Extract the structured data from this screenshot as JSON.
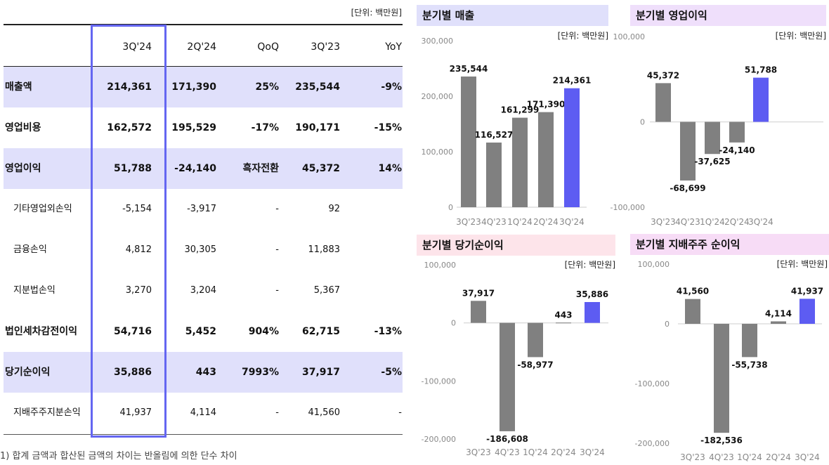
{
  "table": {
    "unit": "[단위: 백만원]",
    "headers": [
      "",
      "3Q'24",
      "2Q'24",
      "QoQ",
      "3Q'23",
      "YoY"
    ],
    "rows": [
      {
        "label": "매출액",
        "values": [
          "214,361",
          "171,390",
          "25%",
          "235,544",
          "-9%"
        ],
        "style": "highlight"
      },
      {
        "label": "영업비용",
        "values": [
          "162,572",
          "195,529",
          "-17%",
          "190,171",
          "-15%"
        ],
        "style": "bold"
      },
      {
        "label": "영업이익",
        "values": [
          "51,788",
          "-24,140",
          "흑자전환",
          "45,372",
          "14%"
        ],
        "style": "highlight"
      },
      {
        "label": "기타영업외손익",
        "values": [
          "-5,154",
          "-3,917",
          "-",
          "92",
          ""
        ],
        "style": "sub"
      },
      {
        "label": "금융손익",
        "values": [
          "4,812",
          "30,305",
          "-",
          "11,883",
          ""
        ],
        "style": "sub"
      },
      {
        "label": "지분법손익",
        "values": [
          "3,270",
          "3,204",
          "-",
          "5,367",
          ""
        ],
        "style": "sub"
      },
      {
        "label": "법인세차감전이익",
        "values": [
          "54,716",
          "5,452",
          "904%",
          "62,715",
          "-13%"
        ],
        "style": "bold"
      },
      {
        "label": "당기순이익",
        "values": [
          "35,886",
          "443",
          "7993%",
          "37,917",
          "-5%"
        ],
        "style": "highlight"
      },
      {
        "label": "지배주주지분손익",
        "values": [
          "41,937",
          "4,114",
          "-",
          "41,560",
          "-"
        ],
        "style": "sub"
      }
    ],
    "footnote": "1) 합계 금액과 합산된 금액의 차이는 반올림에 의한 단수 차이"
  },
  "colors": {
    "highlight_row": "#e0e0fb",
    "box": "#6466f1",
    "bar": "#808080",
    "bar_current": "#5d5cf2"
  },
  "chart_data": [
    {
      "type": "bar",
      "title": "분기별 매출",
      "unit": "[단위: 백만원]",
      "title_bg": "#e0e0fb",
      "categories": [
        "3Q'23",
        "4Q'23",
        "1Q'24",
        "2Q'24",
        "3Q'24"
      ],
      "values": [
        235544,
        116527,
        161299,
        171390,
        214361
      ],
      "labels": [
        "235,544",
        "116,527",
        "161,299",
        "171,390",
        "214,361"
      ],
      "yticks": [
        "300,000",
        "200,000",
        "100,000",
        "0"
      ],
      "ylim": [
        0,
        300000
      ],
      "highlight": "3Q'24"
    },
    {
      "type": "bar",
      "title": "분기별 영업이익",
      "unit": "[단위: 백만원]",
      "title_bg": "#efdffb",
      "categories": [
        "3Q'23",
        "4Q'23",
        "1Q'24",
        "2Q'24",
        "3Q'24"
      ],
      "values": [
        45372,
        -68699,
        -37625,
        -24140,
        51788
      ],
      "labels": [
        "45,372",
        "-68,699",
        "-37,625",
        "-24,140",
        "51,788"
      ],
      "yticks": [
        "100,000",
        "0",
        "-100,000"
      ],
      "ylim": [
        -100000,
        100000
      ],
      "highlight": "3Q'24"
    },
    {
      "type": "bar",
      "title": "분기별 당기순이익",
      "unit": "[단위: 백만원]",
      "title_bg": "#fde4ea",
      "categories": [
        "3Q'23",
        "4Q'23",
        "1Q'24",
        "2Q'24",
        "3Q'24"
      ],
      "values": [
        37917,
        -186608,
        -58977,
        443,
        35886
      ],
      "labels": [
        "37,917",
        "-186,608",
        "-58,977",
        "443",
        "35,886"
      ],
      "yticks": [
        "100,000",
        "0",
        "-100,000",
        "-200,000"
      ],
      "ylim": [
        -200000,
        100000
      ],
      "highlight": "3Q'24"
    },
    {
      "type": "bar",
      "title": "분기별 지배주주 순이익",
      "unit": "[단위: 백만원]",
      "title_bg": "#f7dcf6",
      "categories": [
        "3Q'23",
        "4Q'23",
        "1Q'24",
        "2Q'24",
        "3Q'24"
      ],
      "values": [
        41560,
        -182536,
        -55738,
        4114,
        41937
      ],
      "labels": [
        "41,560",
        "-182,536",
        "-55,738",
        "4,114",
        "41,937"
      ],
      "yticks": [
        "100,000",
        "0",
        "-100,000",
        "-200,000"
      ],
      "ylim": [
        -200000,
        100000
      ],
      "highlight": "3Q'24"
    }
  ]
}
